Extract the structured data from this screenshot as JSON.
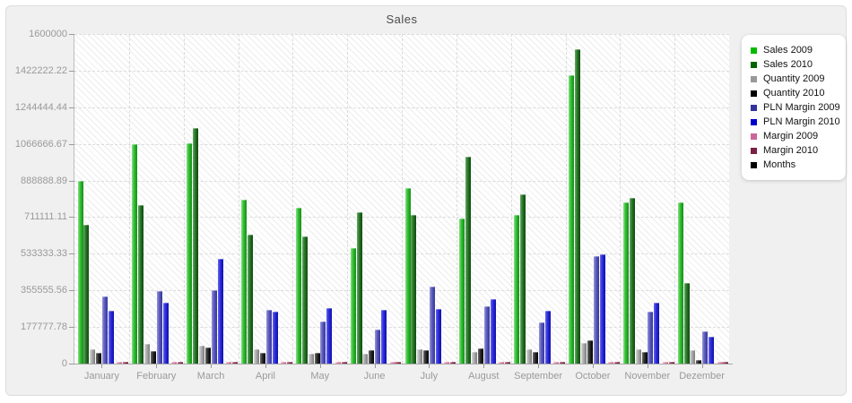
{
  "chart": {
    "title": "Sales",
    "y_axis": {
      "tick_labels": [
        "1600000",
        "1422222.22",
        "1244444.44",
        "1066666.67",
        "888888.89",
        "711111.11",
        "533333.33",
        "355555.56",
        "177777.78",
        "0"
      ]
    },
    "legend": {
      "items": [
        {
          "label": "Sales 2009",
          "color": "#00bb00"
        },
        {
          "label": "Sales 2010",
          "color": "#006600"
        },
        {
          "label": "Quantity 2009",
          "color": "#999999"
        },
        {
          "label": "Quantity 2010",
          "color": "#000000"
        },
        {
          "label": "PLN Margin 2009",
          "color": "#333399"
        },
        {
          "label": "PLN Margin 2010",
          "color": "#0000cc"
        },
        {
          "label": "Margin 2009",
          "color": "#cc6699"
        },
        {
          "label": "Margin 2010",
          "color": "#7a2045"
        },
        {
          "label": "Months",
          "color": "#000000"
        }
      ]
    }
  },
  "chart_data": {
    "type": "bar",
    "title": "Sales",
    "categories": [
      "January",
      "February",
      "March",
      "April",
      "May",
      "June",
      "July",
      "August",
      "September",
      "October",
      "November",
      "Dezember"
    ],
    "ylim": [
      0,
      1600000
    ],
    "y_ticks": [
      0,
      177777.78,
      355555.56,
      533333.33,
      711111.11,
      888888.89,
      1066666.67,
      1244444.44,
      1422222.22,
      1600000
    ],
    "grid": true,
    "legend_position": "right",
    "series": [
      {
        "name": "Sales 2009",
        "visible": true,
        "legend_color": "#00bb00",
        "bar_light": "#8ce08c",
        "bar_base": "#2fbe2f",
        "bar_dark": "#168c18",
        "values": [
          885000,
          1064000,
          1068000,
          794000,
          756000,
          561000,
          854000,
          703000,
          720000,
          1401000,
          783000,
          783000
        ]
      },
      {
        "name": "Sales 2010",
        "visible": true,
        "legend_color": "#006600",
        "bar_light": "#6ca86c",
        "bar_base": "#267726",
        "bar_dark": "#0e4a0e",
        "values": [
          674000,
          768000,
          1144000,
          627000,
          616000,
          735000,
          723000,
          1006000,
          820000,
          1525000,
          804000,
          390000
        ]
      },
      {
        "name": "Quantity 2009",
        "visible": true,
        "legend_color": "#999999",
        "bar_light": "#d8d8d8",
        "bar_base": "#ababab",
        "bar_dark": "#7c7c7c",
        "values": [
          68000,
          94000,
          87000,
          68000,
          47000,
          47000,
          68000,
          58000,
          68000,
          100000,
          71000,
          64000
        ]
      },
      {
        "name": "Quantity 2010",
        "visible": true,
        "legend_color": "#000000",
        "bar_light": "#6f6f6f",
        "bar_base": "#2b2b2b",
        "bar_dark": "#000000",
        "values": [
          51000,
          61000,
          80000,
          53000,
          53000,
          64000,
          64000,
          74000,
          58000,
          114000,
          57000,
          19000
        ]
      },
      {
        "name": "PLN Margin 2009",
        "visible": true,
        "legend_color": "#333399",
        "bar_light": "#9a9ad8",
        "bar_base": "#5a5abe",
        "bar_dark": "#35359a",
        "values": [
          327000,
          351000,
          358000,
          261000,
          206000,
          165000,
          375000,
          280000,
          201000,
          520000,
          254000,
          155000
        ]
      },
      {
        "name": "PLN Margin 2010",
        "visible": true,
        "legend_color": "#0000cc",
        "bar_light": "#6a6aec",
        "bar_base": "#2b2bdc",
        "bar_dark": "#0f0fa8",
        "values": [
          257000,
          296000,
          507000,
          252000,
          268000,
          260000,
          267000,
          314000,
          255000,
          529000,
          296000,
          132000
        ]
      },
      {
        "name": "Margin 2009",
        "visible": true,
        "legend_color": "#cc6699",
        "bar_light": "#f4b6ce",
        "bar_base": "#e884ac",
        "bar_dark": "#c25f86",
        "values": [
          8000,
          8000,
          8000,
          8000,
          8000,
          8000,
          8000,
          8000,
          8000,
          8000,
          8000,
          8000
        ]
      },
      {
        "name": "Margin 2010",
        "visible": true,
        "legend_color": "#7a2045",
        "bar_light": "#b56a82",
        "bar_base": "#8f2b4b",
        "bar_dark": "#5e132e",
        "values": [
          8000,
          8000,
          8000,
          8000,
          8000,
          8000,
          8000,
          8000,
          8000,
          8000,
          8000,
          8000
        ]
      },
      {
        "name": "Months",
        "visible": false,
        "legend_color": "#000000",
        "bar_light": "#000000",
        "bar_base": "#000000",
        "bar_dark": "#000000",
        "values": [
          0,
          0,
          0,
          0,
          0,
          0,
          0,
          0,
          0,
          0,
          0,
          0
        ]
      }
    ]
  }
}
